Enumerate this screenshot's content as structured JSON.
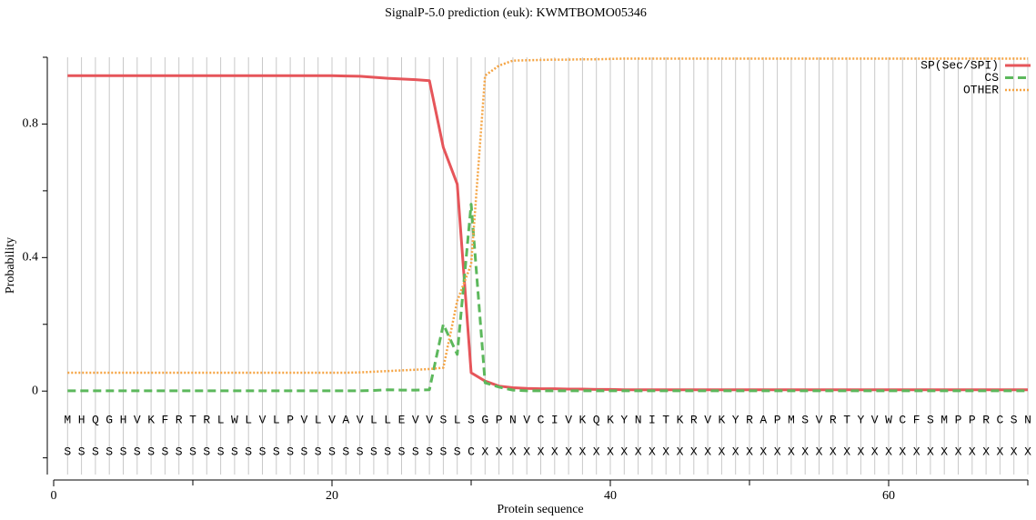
{
  "chart_data": {
    "type": "line",
    "title": "SignalP-5.0 prediction (euk):  KWMTBOMO05346",
    "xlabel": "Protein sequence",
    "ylabel": "Probability",
    "x": [
      1,
      2,
      3,
      4,
      5,
      6,
      7,
      8,
      9,
      10,
      11,
      12,
      13,
      14,
      15,
      16,
      17,
      18,
      19,
      20,
      21,
      22,
      23,
      24,
      25,
      26,
      27,
      28,
      29,
      30,
      31,
      32,
      33,
      34,
      35,
      36,
      37,
      38,
      39,
      40,
      41,
      42,
      43,
      44,
      45,
      46,
      47,
      48,
      49,
      50,
      51,
      52,
      53,
      54,
      55,
      56,
      57,
      58,
      59,
      60,
      61,
      62,
      63,
      64,
      65,
      66,
      67,
      68,
      69,
      70
    ],
    "sequence": [
      "M",
      "H",
      "Q",
      "G",
      "H",
      "V",
      "K",
      "F",
      "R",
      "T",
      "R",
      "L",
      "W",
      "L",
      "V",
      "L",
      "P",
      "V",
      "L",
      "V",
      "A",
      "V",
      "L",
      "L",
      "E",
      "V",
      "V",
      "S",
      "L",
      "S",
      "G",
      "P",
      "N",
      "V",
      "C",
      "I",
      "V",
      "K",
      "Q",
      "K",
      "Y",
      "N",
      "I",
      "T",
      "K",
      "R",
      "V",
      "K",
      "Y",
      "R",
      "A",
      "P",
      "M",
      "S",
      "V",
      "R",
      "T",
      "Y",
      "V",
      "W",
      "C",
      "F",
      "S",
      "M",
      "P",
      "P",
      "R",
      "C",
      "S",
      "N"
    ],
    "annotation": [
      "S",
      "S",
      "S",
      "S",
      "S",
      "S",
      "S",
      "S",
      "S",
      "S",
      "S",
      "S",
      "S",
      "S",
      "S",
      "S",
      "S",
      "S",
      "S",
      "S",
      "S",
      "S",
      "S",
      "S",
      "S",
      "S",
      "S",
      "S",
      "S",
      "C",
      "X",
      "X",
      "X",
      "X",
      "X",
      "X",
      "X",
      "X",
      "X",
      "X",
      "X",
      "X",
      "X",
      "X",
      "X",
      "X",
      "X",
      "X",
      "X",
      "X",
      "X",
      "X",
      "X",
      "X",
      "X",
      "X",
      "X",
      "X",
      "X",
      "X",
      "X",
      "X",
      "X",
      "X",
      "X",
      "X",
      "X",
      "X",
      "X",
      "X"
    ],
    "series": [
      {
        "name": "SP(Sec/SPI)",
        "color": "#e6555a",
        "dash": "none",
        "values": [
          0.945,
          0.945,
          0.945,
          0.945,
          0.945,
          0.945,
          0.945,
          0.945,
          0.945,
          0.945,
          0.945,
          0.945,
          0.945,
          0.945,
          0.945,
          0.945,
          0.945,
          0.945,
          0.945,
          0.945,
          0.944,
          0.943,
          0.94,
          0.937,
          0.935,
          0.933,
          0.93,
          0.73,
          0.62,
          0.055,
          0.03,
          0.015,
          0.01,
          0.008,
          0.007,
          0.007,
          0.006,
          0.006,
          0.005,
          0.005,
          0.004,
          0.004,
          0.004,
          0.004,
          0.004,
          0.004,
          0.004,
          0.004,
          0.004,
          0.004,
          0.004,
          0.004,
          0.004,
          0.004,
          0.004,
          0.004,
          0.004,
          0.004,
          0.004,
          0.004,
          0.004,
          0.004,
          0.004,
          0.004,
          0.004,
          0.004,
          0.004,
          0.004,
          0.004,
          0.004
        ]
      },
      {
        "name": "CS",
        "color": "#5cb85c",
        "dash": "9,5",
        "values": [
          0.001,
          0.001,
          0.001,
          0.001,
          0.001,
          0.001,
          0.001,
          0.001,
          0.001,
          0.001,
          0.001,
          0.001,
          0.001,
          0.001,
          0.001,
          0.001,
          0.001,
          0.001,
          0.001,
          0.001,
          0.001,
          0.001,
          0.002,
          0.004,
          0.003,
          0.003,
          0.004,
          0.2,
          0.11,
          0.56,
          0.025,
          0.012,
          0.003,
          0.001,
          0.001,
          0.001,
          0.001,
          0.001,
          0.001,
          0.001,
          0.001,
          0.001,
          0.001,
          0.001,
          0.001,
          0.001,
          0.001,
          0.001,
          0.001,
          0.001,
          0.001,
          0.001,
          0.001,
          0.001,
          0.001,
          0.001,
          0.001,
          0.001,
          0.001,
          0.001,
          0.001,
          0.001,
          0.001,
          0.001,
          0.001,
          0.001,
          0.001,
          0.001,
          0.001,
          0.001
        ]
      },
      {
        "name": "OTHER",
        "color": "#f5a443",
        "dash": "2,2",
        "values": [
          0.055,
          0.055,
          0.055,
          0.055,
          0.055,
          0.055,
          0.055,
          0.055,
          0.055,
          0.055,
          0.055,
          0.055,
          0.055,
          0.055,
          0.055,
          0.055,
          0.055,
          0.055,
          0.055,
          0.055,
          0.055,
          0.056,
          0.058,
          0.06,
          0.062,
          0.064,
          0.066,
          0.07,
          0.27,
          0.38,
          0.945,
          0.975,
          0.99,
          0.991,
          0.992,
          0.993,
          0.993,
          0.994,
          0.994,
          0.995,
          0.996,
          0.996,
          0.996,
          0.996,
          0.996,
          0.996,
          0.996,
          0.996,
          0.996,
          0.996,
          0.996,
          0.996,
          0.996,
          0.996,
          0.996,
          0.996,
          0.996,
          0.996,
          0.996,
          0.996,
          0.996,
          0.996,
          0.996,
          0.996,
          0.996,
          0.996,
          0.996,
          0.996,
          0.996,
          0.996
        ]
      }
    ],
    "xlim": [
      0,
      70
    ],
    "xticks": [
      0,
      20,
      40,
      60
    ],
    "xminorticks": [
      10,
      30,
      50,
      70
    ],
    "ylim": [
      -0.25,
      1.0
    ],
    "yticks": [
      0,
      0.4,
      0.8
    ],
    "yminorticks": [
      -0.2,
      0.2,
      0.6,
      1.0
    ],
    "grid": true,
    "legend": "top-right"
  }
}
